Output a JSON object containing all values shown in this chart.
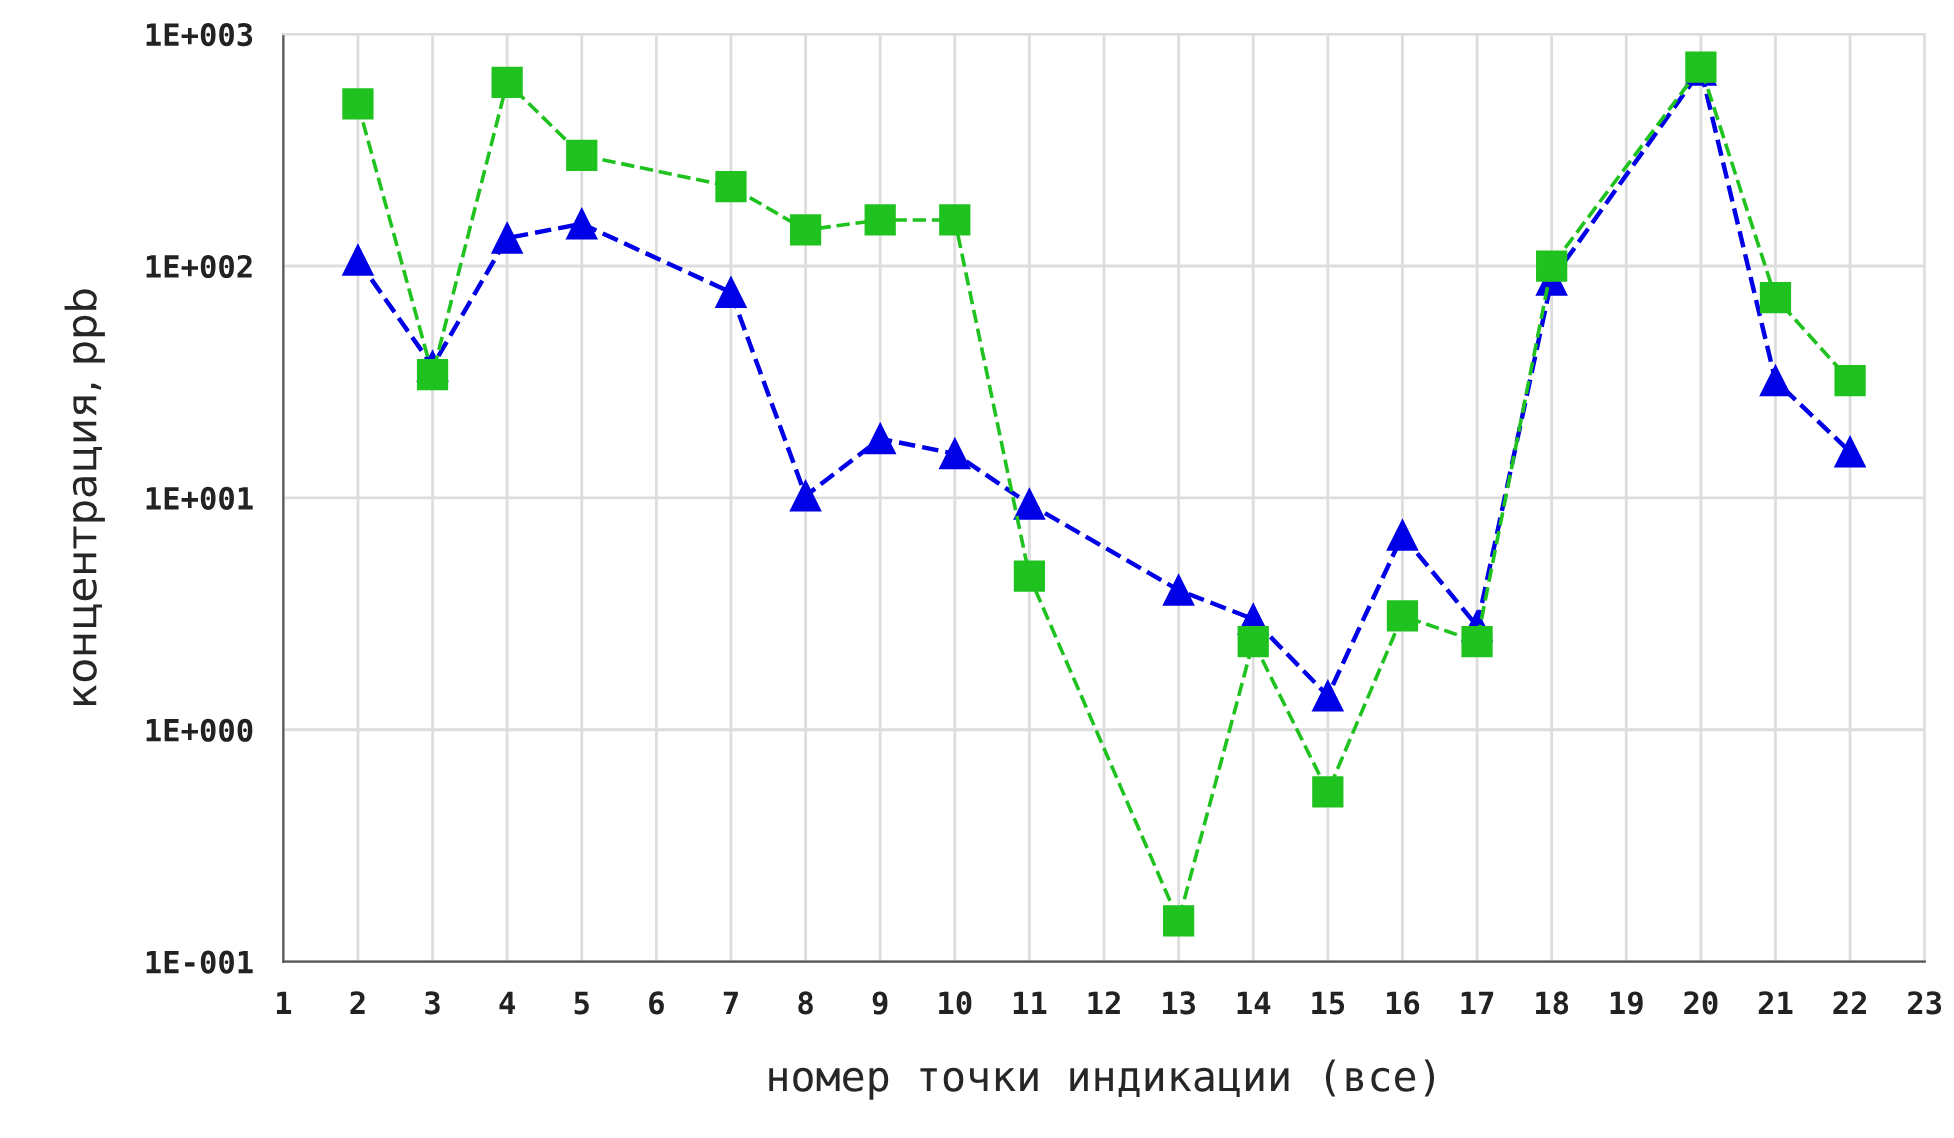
{
  "chart_data": {
    "type": "line",
    "xlabel": "номер точки индикации (все)",
    "ylabel": "концентрация, ppb",
    "log": "y",
    "grid": true,
    "line_style": "dashed",
    "xlim": [
      1,
      23
    ],
    "xticks": [
      1,
      2,
      3,
      4,
      5,
      6,
      7,
      8,
      9,
      10,
      11,
      12,
      13,
      14,
      15,
      16,
      17,
      18,
      19,
      20,
      21,
      22,
      23
    ],
    "ylim": [
      0.1,
      1000
    ],
    "yticks": [
      {
        "value": 0.1,
        "label": "1E-001"
      },
      {
        "value": 1,
        "label": "1E+000"
      },
      {
        "value": 10,
        "label": "1E+001"
      },
      {
        "value": 100,
        "label": "1E+002"
      },
      {
        "value": 1000,
        "label": "1E+003"
      }
    ],
    "series": [
      {
        "color": "#1fc21f",
        "marker": "square",
        "x": [
          2,
          3,
          4,
          5,
          7,
          8,
          9,
          10,
          11,
          13,
          14,
          15,
          16,
          17,
          18,
          20,
          21,
          22
        ],
        "values": [
          500,
          34,
          620,
          300,
          220,
          143,
          158,
          158,
          4.6,
          0.15,
          2.4,
          0.54,
          3.1,
          2.4,
          100,
          720,
          73,
          32
        ]
      },
      {
        "color": "#0000e6",
        "marker": "triangle",
        "x": [
          2,
          3,
          4,
          5,
          7,
          8,
          9,
          10,
          11,
          13,
          14,
          15,
          16,
          17,
          18,
          20,
          21,
          22
        ],
        "values": [
          106,
          37,
          132,
          152,
          77,
          10.2,
          18,
          15.5,
          9.4,
          4.0,
          3.0,
          1.4,
          6.9,
          2.8,
          87,
          700,
          32,
          15.8
        ]
      }
    ]
  }
}
